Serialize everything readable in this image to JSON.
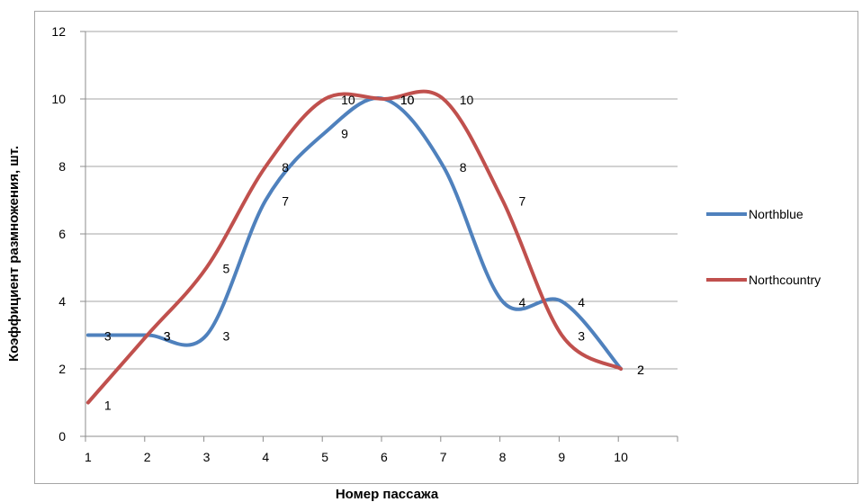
{
  "chart_data": {
    "type": "line",
    "title": "",
    "xlabel": "Номер пассажа",
    "ylabel": "Коэффициент размножения, шт.",
    "categories": [
      1,
      2,
      3,
      4,
      5,
      6,
      7,
      8,
      9,
      10
    ],
    "ylim": [
      0,
      12
    ],
    "yticks": [
      0,
      2,
      4,
      6,
      8,
      10,
      12
    ],
    "grid": true,
    "legend": "right",
    "series": [
      {
        "name": "Northblue",
        "color": "#4f81bd",
        "values": [
          3,
          3,
          3,
          7,
          9,
          10,
          8,
          4,
          4,
          2
        ]
      },
      {
        "name": "Northcountry",
        "color": "#c0504d",
        "values": [
          1,
          3,
          5,
          8,
          10,
          10,
          10,
          7,
          3,
          2
        ]
      }
    ]
  }
}
